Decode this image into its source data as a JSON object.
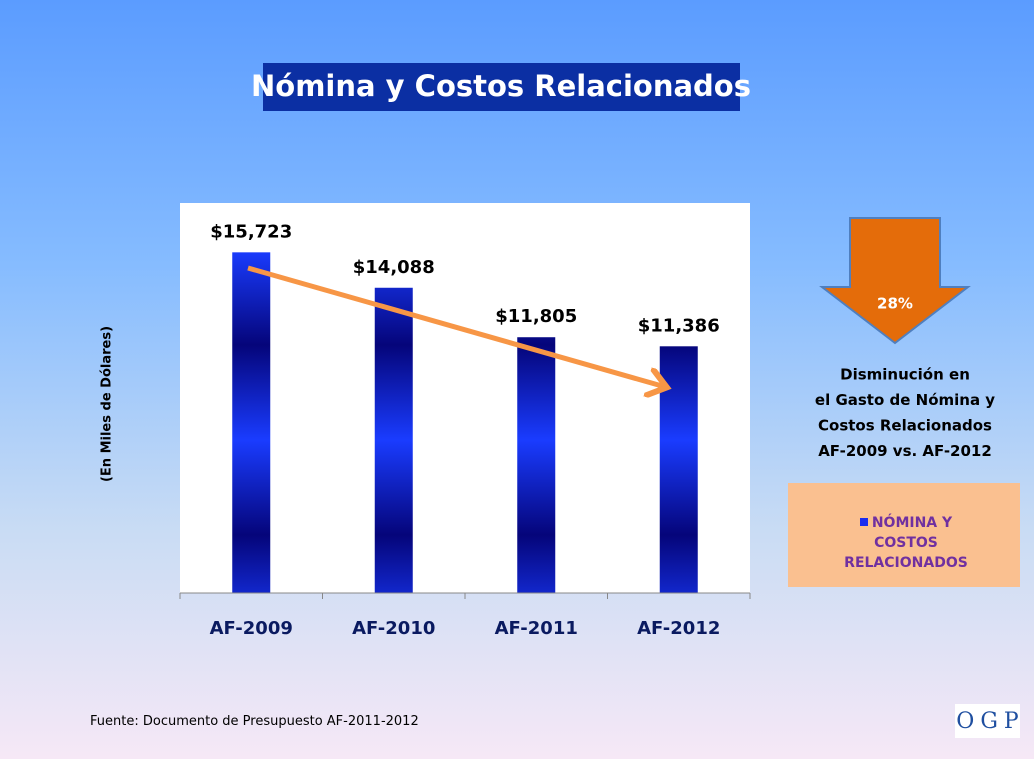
{
  "chart_data": {
    "type": "bar",
    "title": "Nómina y Costos Relacionados",
    "y_label": "(En  Miles de Dólares)",
    "categories": [
      "AF-2009",
      "AF-2010",
      "AF-2011",
      "AF-2012"
    ],
    "series": [
      {
        "name": "NÓMINA Y COSTOS RELACIONADOS",
        "color": "#1a2cf0",
        "values": [
          15723,
          14088,
          11805,
          11386
        ],
        "value_labels": [
          "$15,723",
          "$14,088",
          "$11,805",
          "$11,386"
        ]
      }
    ],
    "ylim": [
      0,
      18000
    ],
    "legend": "right",
    "decrease_label": "28%",
    "annotation": [
      "Disminución en",
      "el Gasto de Nómina y",
      "Costos Relacionados",
      "AF-2009 vs. AF-2012"
    ]
  },
  "source": "Fuente:  Documento de Presupuesto AF-2011-2012",
  "logo": [
    "O",
    "G",
    "P"
  ]
}
